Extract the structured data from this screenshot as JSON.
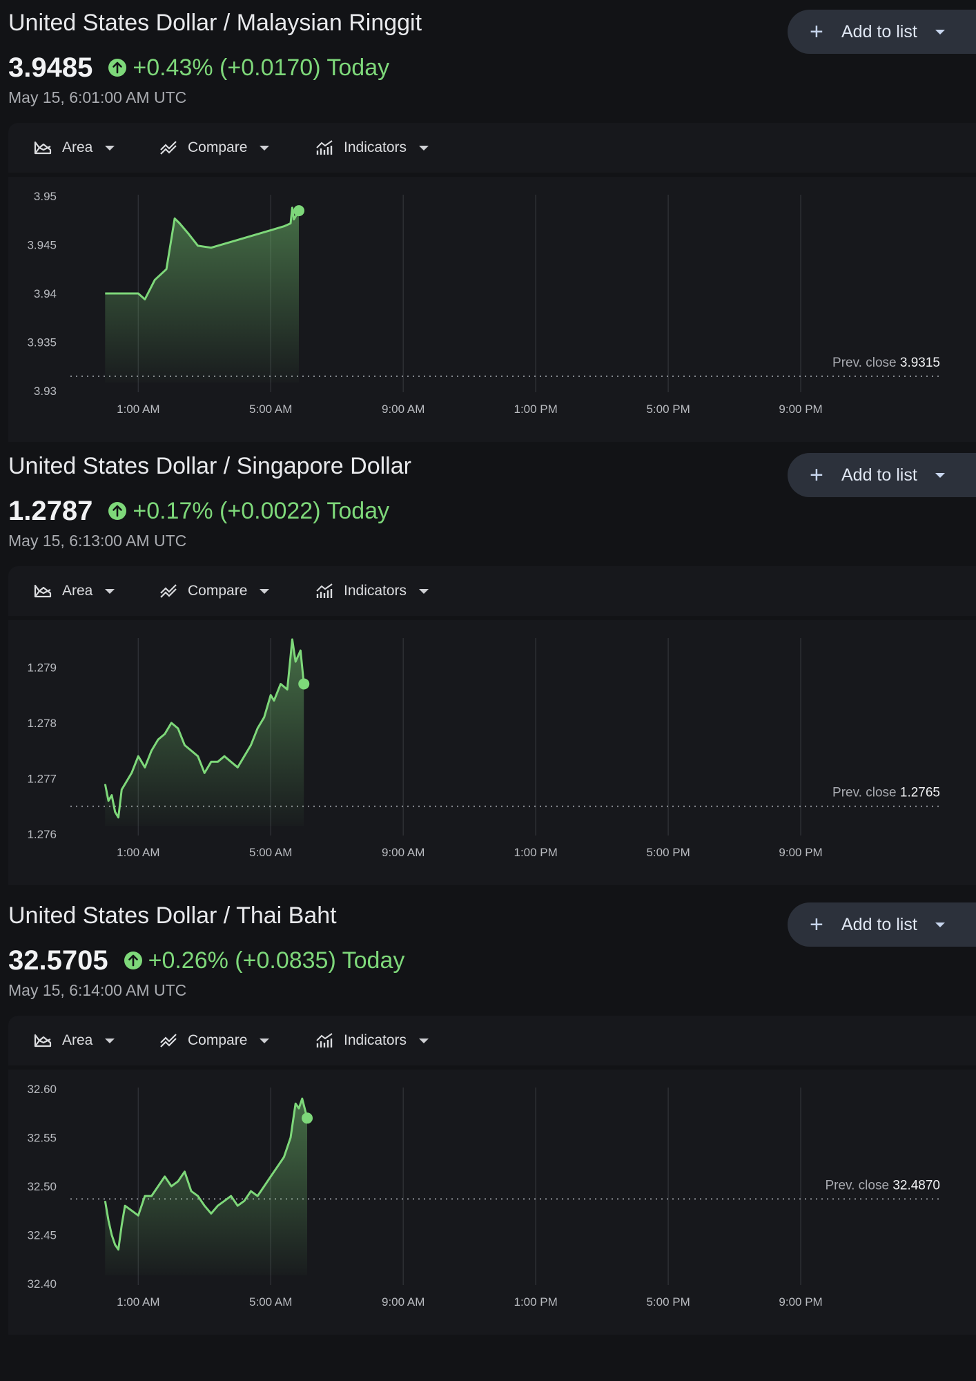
{
  "colors": {
    "background": "#121316",
    "panel": "#17181c",
    "positive": "#7ed87a",
    "button": "#2c313b",
    "grid": "#2f3136"
  },
  "toolbar": {
    "area_label": "Area",
    "compare_label": "Compare",
    "indicators_label": "Indicators"
  },
  "panels": [
    {
      "title": "United States Dollar / Malaysian Ringgit",
      "price": "3.9485",
      "change": "+0.43% (+0.0170) Today",
      "timestamp": "May 15, 6:01:00 AM UTC",
      "add_label": "Add to list",
      "icon": "arrow-up-circle-icon"
    },
    {
      "title": "United States Dollar / Singapore Dollar",
      "price": "1.2787",
      "change": "+0.17% (+0.0022) Today",
      "timestamp": "May 15, 6:13:00 AM UTC",
      "add_label": "Add to list",
      "icon": "arrow-up-circle-icon"
    },
    {
      "title": "United States Dollar / Thai Baht",
      "price": "32.5705",
      "change": "+0.26% (+0.0835) Today",
      "timestamp": "May 15, 6:14:00 AM UTC",
      "add_label": "Add to list",
      "icon": "arrow-up-circle-icon"
    }
  ],
  "chart_data": [
    {
      "type": "area",
      "x_ticks": [
        "1:00 AM",
        "5:00 AM",
        "9:00 AM",
        "1:00 PM",
        "5:00 PM",
        "9:00 PM"
      ],
      "x_range": [
        -0.84,
        25.0
      ],
      "y_ticks": [
        "3.95",
        "3.945",
        "3.94",
        "3.935",
        "3.93"
      ],
      "y_range": [
        3.93,
        3.95
      ],
      "grid": "vertical",
      "prev_close_label": "Prev. close",
      "prev_close": 3.9315,
      "prev_close_text": "3.9315",
      "series": [
        {
          "x": [
            0,
            1.0,
            1.2,
            1.5,
            1.85,
            2.1,
            2.25,
            2.5,
            2.8,
            3.0,
            3.2,
            3.7,
            4.5,
            5.0,
            5.4,
            5.6,
            5.65,
            5.7,
            5.85
          ],
          "values": [
            3.94,
            3.94,
            3.9394,
            3.9414,
            3.9425,
            3.9477,
            3.9472,
            3.9462,
            3.9449,
            3.9448,
            3.9447,
            3.9452,
            3.946,
            3.9465,
            3.9469,
            3.9472,
            3.9488,
            3.9476,
            3.9485
          ]
        }
      ]
    },
    {
      "type": "area",
      "x_ticks": [
        "1:00 AM",
        "5:00 AM",
        "9:00 AM",
        "1:00 PM",
        "5:00 PM",
        "9:00 PM"
      ],
      "x_range": [
        -0.84,
        25.0
      ],
      "y_ticks": [
        "1.279",
        "1.278",
        "1.277",
        "1.276"
      ],
      "y_range": [
        1.276,
        1.2795
      ],
      "grid": "vertical",
      "prev_close_label": "Prev. close",
      "prev_close": 1.2765,
      "prev_close_text": "1.2765",
      "series": [
        {
          "x": [
            0,
            0.1,
            0.2,
            0.3,
            0.4,
            0.5,
            0.6,
            0.8,
            1.0,
            1.2,
            1.4,
            1.6,
            1.8,
            2.0,
            2.2,
            2.4,
            2.6,
            2.8,
            3.0,
            3.2,
            3.4,
            3.6,
            3.8,
            4.0,
            4.2,
            4.4,
            4.6,
            4.8,
            5.0,
            5.1,
            5.3,
            5.5,
            5.65,
            5.75,
            5.9,
            6.0
          ],
          "values": [
            1.2769,
            1.2766,
            1.2767,
            1.2764,
            1.2763,
            1.2768,
            1.2769,
            1.2771,
            1.2774,
            1.2772,
            1.2775,
            1.2777,
            1.2778,
            1.278,
            1.2779,
            1.2776,
            1.2775,
            1.2774,
            1.2771,
            1.2773,
            1.2773,
            1.2774,
            1.2773,
            1.2772,
            1.2774,
            1.2776,
            1.2779,
            1.2781,
            1.2785,
            1.2784,
            1.2787,
            1.2786,
            1.2795,
            1.2791,
            1.2793,
            1.2787
          ]
        }
      ]
    },
    {
      "type": "area",
      "x_ticks": [
        "1:00 AM",
        "5:00 AM",
        "9:00 AM",
        "1:00 PM",
        "5:00 PM",
        "9:00 PM"
      ],
      "x_range": [
        -0.84,
        25.0
      ],
      "y_ticks": [
        "32.60",
        "32.55",
        "32.50",
        "32.45",
        "32.40"
      ],
      "y_range": [
        32.4,
        32.6
      ],
      "grid": "vertical",
      "prev_close_label": "Prev. close",
      "prev_close": 32.487,
      "prev_close_text": "32.4870",
      "series": [
        {
          "x": [
            0,
            0.1,
            0.2,
            0.3,
            0.4,
            0.5,
            0.6,
            0.8,
            1.0,
            1.2,
            1.4,
            1.6,
            1.8,
            2.0,
            2.2,
            2.4,
            2.6,
            2.8,
            3.0,
            3.2,
            3.4,
            3.6,
            3.8,
            4.0,
            4.2,
            4.4,
            4.6,
            4.8,
            5.0,
            5.2,
            5.4,
            5.6,
            5.75,
            5.85,
            5.95,
            6.1
          ],
          "values": [
            32.485,
            32.465,
            32.45,
            32.44,
            32.435,
            32.46,
            32.48,
            32.475,
            32.47,
            32.49,
            32.49,
            32.5,
            32.51,
            32.5,
            32.505,
            32.515,
            32.495,
            32.49,
            32.48,
            32.472,
            32.48,
            32.485,
            32.49,
            32.48,
            32.485,
            32.495,
            32.49,
            32.5,
            32.51,
            32.52,
            32.53,
            32.55,
            32.585,
            32.58,
            32.59,
            32.57
          ]
        }
      ]
    }
  ]
}
